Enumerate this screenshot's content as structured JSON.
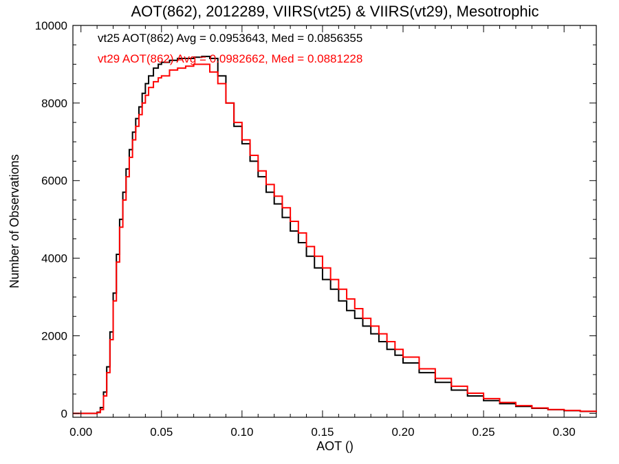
{
  "chart_data": {
    "type": "line",
    "title": "AOT(862), 2012289, VIIRS(vt25) & VIIRS(vt29), Mesotrophic",
    "xlabel": "AOT ()",
    "ylabel": "Number of Observations",
    "xlim": [
      -0.005,
      0.32
    ],
    "ylim": [
      -100,
      10000
    ],
    "xticks": [
      0.0,
      0.05,
      0.1,
      0.15,
      0.2,
      0.25,
      0.3
    ],
    "xtick_labels": [
      "0.00",
      "0.05",
      "0.10",
      "0.15",
      "0.20",
      "0.25",
      "0.30"
    ],
    "yticks": [
      0,
      2000,
      4000,
      6000,
      8000,
      10000
    ],
    "ytick_labels": [
      "0",
      "2000",
      "4000",
      "6000",
      "8000",
      "10000"
    ],
    "grid": false,
    "annotations": [
      {
        "text": "vt25 AOT(862) Avg = 0.0953643, Med = 0.0856355",
        "color": "#000000"
      },
      {
        "text": "vt29 AOT(862) Avg = 0.0982662, Med = 0.0881228",
        "color": "#ff0000"
      }
    ],
    "series": [
      {
        "color": "#000000",
        "x": [
          -0.005,
          0.005,
          0.01,
          0.012,
          0.014,
          0.016,
          0.018,
          0.02,
          0.022,
          0.024,
          0.026,
          0.028,
          0.03,
          0.032,
          0.034,
          0.036,
          0.038,
          0.04,
          0.042,
          0.045,
          0.048,
          0.05,
          0.055,
          0.06,
          0.065,
          0.07,
          0.075,
          0.08,
          0.085,
          0.09,
          0.095,
          0.1,
          0.105,
          0.11,
          0.115,
          0.12,
          0.125,
          0.13,
          0.135,
          0.14,
          0.145,
          0.15,
          0.155,
          0.16,
          0.165,
          0.17,
          0.175,
          0.18,
          0.185,
          0.19,
          0.195,
          0.2,
          0.21,
          0.22,
          0.23,
          0.24,
          0.25,
          0.26,
          0.27,
          0.28,
          0.29,
          0.3,
          0.31,
          0.32
        ],
        "y": [
          0,
          0,
          30,
          150,
          550,
          1200,
          2100,
          3100,
          4100,
          5000,
          5700,
          6300,
          6800,
          7250,
          7600,
          7900,
          8250,
          8500,
          8700,
          8900,
          9000,
          9050,
          9100,
          9150,
          9150,
          9180,
          9200,
          9150,
          8700,
          8000,
          7400,
          6950,
          6500,
          6100,
          5700,
          5400,
          5050,
          4700,
          4400,
          4050,
          3750,
          3450,
          3200,
          2900,
          2650,
          2450,
          2250,
          2050,
          1850,
          1650,
          1500,
          1300,
          1050,
          800,
          600,
          450,
          330,
          250,
          180,
          130,
          95,
          70,
          50,
          30
        ]
      },
      {
        "color": "#ff0000",
        "x": [
          -0.005,
          0.005,
          0.01,
          0.012,
          0.014,
          0.016,
          0.018,
          0.02,
          0.022,
          0.024,
          0.026,
          0.028,
          0.03,
          0.032,
          0.034,
          0.036,
          0.038,
          0.04,
          0.042,
          0.045,
          0.048,
          0.05,
          0.055,
          0.06,
          0.065,
          0.07,
          0.075,
          0.08,
          0.085,
          0.09,
          0.095,
          0.1,
          0.105,
          0.11,
          0.115,
          0.12,
          0.125,
          0.13,
          0.135,
          0.14,
          0.145,
          0.15,
          0.155,
          0.16,
          0.165,
          0.17,
          0.175,
          0.18,
          0.185,
          0.19,
          0.195,
          0.2,
          0.21,
          0.22,
          0.23,
          0.24,
          0.25,
          0.26,
          0.27,
          0.28,
          0.29,
          0.3,
          0.31,
          0.32
        ],
        "y": [
          0,
          0,
          20,
          100,
          450,
          1050,
          1900,
          2900,
          3900,
          4800,
          5500,
          6100,
          6600,
          7050,
          7400,
          7700,
          8000,
          8200,
          8400,
          8550,
          8650,
          8700,
          8850,
          8900,
          8950,
          9000,
          9000,
          8800,
          8500,
          8000,
          7500,
          7050,
          6650,
          6250,
          5900,
          5600,
          5300,
          4950,
          4650,
          4300,
          4050,
          3750,
          3450,
          3200,
          2950,
          2700,
          2450,
          2250,
          2050,
          1850,
          1650,
          1450,
          1150,
          900,
          700,
          520,
          380,
          280,
          200,
          140,
          100,
          75,
          55,
          35
        ]
      }
    ]
  }
}
